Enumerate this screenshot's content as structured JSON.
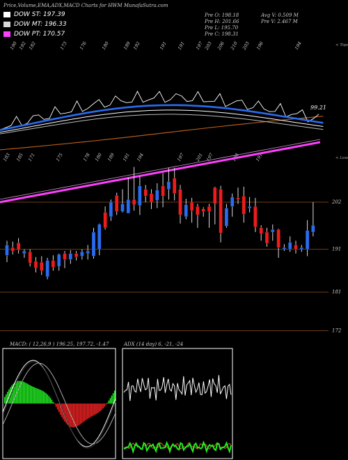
{
  "header": {
    "title": "Price,Volume,EMA,ADX,MACD Charts for HWM MunafaSutra.com"
  },
  "legend": [
    {
      "label": "DOW ST: 197.39",
      "color": "#ffffff"
    },
    {
      "label": "DOW MT: 196.33",
      "color": "#d9d9d9"
    },
    {
      "label": "DOW PT: 170.57",
      "color": "#ff40ff"
    }
  ],
  "info": {
    "prev_open": "Pre  O: 198.18",
    "prev_high": "Pre  H: 201.66",
    "prev_low": "Pre  L: 195.70",
    "prev_close": "Pre  C: 198.31",
    "avg_vol": "Avg V: 0.509 M",
    "pre_vol": "Pre  V: 2.467 M"
  },
  "top_labels": [
    "190",
    "192",
    "182",
    "173",
    "176",
    "180",
    "189",
    "192",
    "191",
    "191",
    "197",
    "203",
    "206",
    "210",
    "203",
    "196",
    "194"
  ],
  "top_tag": "< Tops",
  "low_labels": [
    "183",
    "185",
    "171",
    "175",
    "178",
    "180",
    "189",
    "191",
    "194",
    "197",
    "201",
    "197",
    "194",
    "191"
  ],
  "low_tag": "< Lows",
  "price_marker": "99.21",
  "price_axis": [
    "202",
    "191",
    "181",
    "172"
  ],
  "chart_data": [
    {
      "type": "candlestick",
      "title": "Price,Volume,EMA,ADX,MACD Charts for HWM MunafaSutra.com",
      "y_axis_ticks": [
        202,
        191,
        181,
        172
      ],
      "ylim": [
        166,
        216
      ],
      "candles": [
        {
          "o": 189.6,
          "c": 192.0,
          "h": 193.0,
          "l": 188.0
        },
        {
          "o": 191.4,
          "c": 190.6,
          "h": 192.8,
          "l": 189.8
        },
        {
          "o": 192.5,
          "c": 190.8,
          "h": 193.6,
          "l": 190.0
        },
        {
          "o": 190.0,
          "c": 190.6,
          "h": 191.0,
          "l": 189.0
        },
        {
          "o": 190.4,
          "c": 187.8,
          "h": 191.0,
          "l": 187.0
        },
        {
          "o": 188.2,
          "c": 186.6,
          "h": 189.2,
          "l": 185.6
        },
        {
          "o": 188.0,
          "c": 186.0,
          "h": 189.4,
          "l": 185.0
        },
        {
          "o": 184.6,
          "c": 188.4,
          "h": 189.0,
          "l": 184.0
        },
        {
          "o": 188.4,
          "c": 186.8,
          "h": 189.6,
          "l": 186.0
        },
        {
          "o": 187.0,
          "c": 189.8,
          "h": 190.0,
          "l": 186.0
        },
        {
          "o": 190.0,
          "c": 188.6,
          "h": 190.6,
          "l": 186.6
        },
        {
          "o": 188.6,
          "c": 190.0,
          "h": 190.8,
          "l": 187.6
        },
        {
          "o": 190.0,
          "c": 189.2,
          "h": 190.6,
          "l": 188.4
        },
        {
          "o": 189.4,
          "c": 190.4,
          "h": 191.0,
          "l": 188.6
        },
        {
          "o": 190.0,
          "c": 190.6,
          "h": 192.0,
          "l": 188.6
        },
        {
          "o": 189.4,
          "c": 195.0,
          "h": 196.0,
          "l": 188.8
        },
        {
          "o": 191.0,
          "c": 196.8,
          "h": 197.0,
          "l": 189.6
        },
        {
          "o": 199.6,
          "c": 196.0,
          "h": 201.0,
          "l": 195.6
        },
        {
          "o": 198.6,
          "c": 202.0,
          "h": 202.6,
          "l": 197.6
        },
        {
          "o": 203.6,
          "c": 199.8,
          "h": 204.2,
          "l": 199.0
        },
        {
          "o": 199.8,
          "c": 201.6,
          "h": 205.0,
          "l": 199.6
        },
        {
          "o": 199.4,
          "c": 202.6,
          "h": 207.8,
          "l": 199.4
        },
        {
          "o": 202.6,
          "c": 201.4,
          "h": 210.2,
          "l": 200.0
        },
        {
          "o": 201.2,
          "c": 205.8,
          "h": 208.0,
          "l": 199.0
        },
        {
          "o": 205.0,
          "c": 203.4,
          "h": 206.0,
          "l": 202.0
        },
        {
          "o": 204.0,
          "c": 202.0,
          "h": 205.0,
          "l": 200.4
        },
        {
          "o": 202.4,
          "c": 204.8,
          "h": 206.4,
          "l": 200.6
        },
        {
          "o": 205.8,
          "c": 203.4,
          "h": 208.8,
          "l": 200.8
        },
        {
          "o": 205.0,
          "c": 206.8,
          "h": 210.0,
          "l": 202.6
        },
        {
          "o": 207.6,
          "c": 204.0,
          "h": 210.0,
          "l": 202.4
        },
        {
          "o": 205.0,
          "c": 199.0,
          "h": 206.0,
          "l": 197.0
        },
        {
          "o": 198.6,
          "c": 201.4,
          "h": 202.8,
          "l": 198.0
        },
        {
          "o": 202.0,
          "c": 200.0,
          "h": 203.0,
          "l": 197.2
        },
        {
          "o": 201.0,
          "c": 199.0,
          "h": 201.6,
          "l": 196.0
        },
        {
          "o": 200.4,
          "c": 199.8,
          "h": 200.8,
          "l": 198.6
        },
        {
          "o": 201.0,
          "c": 199.8,
          "h": 201.6,
          "l": 196.0
        },
        {
          "o": 205.4,
          "c": 201.6,
          "h": 205.6,
          "l": 196.8
        },
        {
          "o": 205.0,
          "c": 194.8,
          "h": 205.8,
          "l": 192.6
        },
        {
          "o": 196.4,
          "c": 200.6,
          "h": 201.6,
          "l": 196.0
        },
        {
          "o": 201.0,
          "c": 203.2,
          "h": 204.0,
          "l": 198.6
        },
        {
          "o": 203.0,
          "c": 202.6,
          "h": 205.4,
          "l": 201.6
        },
        {
          "o": 203.4,
          "c": 199.2,
          "h": 205.6,
          "l": 197.2
        },
        {
          "o": 200.6,
          "c": 201.0,
          "h": 203.2,
          "l": 199.6
        },
        {
          "o": 201.0,
          "c": 196.2,
          "h": 203.0,
          "l": 195.0
        },
        {
          "o": 196.0,
          "c": 194.6,
          "h": 196.6,
          "l": 193.0
        },
        {
          "o": 195.0,
          "c": 192.4,
          "h": 196.0,
          "l": 191.6
        },
        {
          "o": 195.0,
          "c": 195.6,
          "h": 196.8,
          "l": 193.0
        },
        {
          "o": 195.6,
          "c": 191.4,
          "h": 195.8,
          "l": 189.0
        },
        {
          "o": 191.0,
          "c": 191.4,
          "h": 192.2,
          "l": 190.6
        },
        {
          "o": 191.0,
          "c": 192.6,
          "h": 194.0,
          "l": 190.4
        },
        {
          "o": 192.0,
          "c": 191.0,
          "h": 193.0,
          "l": 190.0
        },
        {
          "o": 191.0,
          "c": 191.4,
          "h": 192.0,
          "l": 190.4
        },
        {
          "o": 191.0,
          "c": 195.4,
          "h": 197.8,
          "l": 189.4
        },
        {
          "o": 195.0,
          "c": 196.6,
          "h": 202.0,
          "l": 194.0
        }
      ],
      "overlays": {
        "dow_st": 197.39,
        "dow_mt": 196.33,
        "dow_pt": 170.57
      }
    },
    {
      "type": "macd",
      "caption": "MACD: ( 12,26,9 ) 196.25,  197.72, -1.47"
    },
    {
      "type": "adx",
      "caption": "ADX     (14  day) 6,  -21,  -24"
    }
  ],
  "macd_caption": "MACD: ( 12,26,9 ) 196.25,  197.72, -1.47",
  "adx_caption": "ADX     (14  day) 6,  -21,  -24",
  "colors": {
    "bull": "#2a6cf0",
    "bear": "#ee1c1c",
    "ema_fast": "#2a6cf0",
    "purple": "#ff40ff",
    "grid": "#6b3c14",
    "macd_pos": "#22ee22",
    "macd_neg": "#ee2222"
  }
}
